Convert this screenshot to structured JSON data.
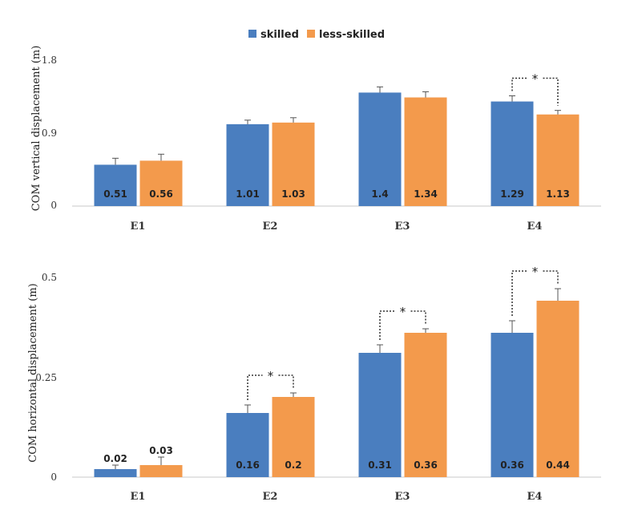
{
  "legend": {
    "items": [
      "skilled",
      "less-skilled"
    ]
  },
  "chart_data": [
    {
      "type": "bar",
      "ylabel": "COM vertical displacement (m)",
      "xlabel": "",
      "ylim": [
        0,
        1.8
      ],
      "yticks": [
        "0",
        "0.9",
        "1.8"
      ],
      "categories": [
        "E1",
        "E2",
        "E3",
        "E4"
      ],
      "series": [
        {
          "name": "skilled",
          "color": "#4a7ebf",
          "values": [
            0.51,
            1.01,
            1.4,
            1.29
          ],
          "labels": [
            "0.51",
            "1.01",
            "1.4",
            "1.29"
          ],
          "errors": [
            0.08,
            0.05,
            0.07,
            0.07
          ]
        },
        {
          "name": "less-skilled",
          "color": "#f39a4c",
          "values": [
            0.56,
            1.03,
            1.34,
            1.13
          ],
          "labels": [
            "0.56",
            "1.03",
            "1.34",
            "1.13"
          ],
          "errors": [
            0.08,
            0.06,
            0.07,
            0.05
          ]
        }
      ],
      "significance": [
        {
          "category": "E4",
          "label": "*"
        }
      ],
      "grid": false,
      "legend_position": "top"
    },
    {
      "type": "bar",
      "ylabel": "COM horizontal displacement (m)",
      "xlabel": "",
      "ylim": [
        0,
        0.5
      ],
      "yticks": [
        "0",
        "0.25",
        "0.5"
      ],
      "categories": [
        "E1",
        "E2",
        "E3",
        "E4"
      ],
      "series": [
        {
          "name": "skilled",
          "color": "#4a7ebf",
          "values": [
            0.02,
            0.16,
            0.31,
            0.36
          ],
          "labels": [
            "0.02",
            "0.16",
            "0.31",
            "0.36"
          ],
          "errors": [
            0.01,
            0.02,
            0.02,
            0.03
          ]
        },
        {
          "name": "less-skilled",
          "color": "#f39a4c",
          "values": [
            0.03,
            0.2,
            0.36,
            0.44
          ],
          "labels": [
            "0.03",
            "0.2",
            "0.36",
            "0.44"
          ],
          "errors": [
            0.02,
            0.01,
            0.01,
            0.03
          ]
        }
      ],
      "significance": [
        {
          "category": "E2",
          "label": "*"
        },
        {
          "category": "E3",
          "label": "*"
        },
        {
          "category": "E4",
          "label": "*"
        }
      ],
      "grid": false
    }
  ]
}
